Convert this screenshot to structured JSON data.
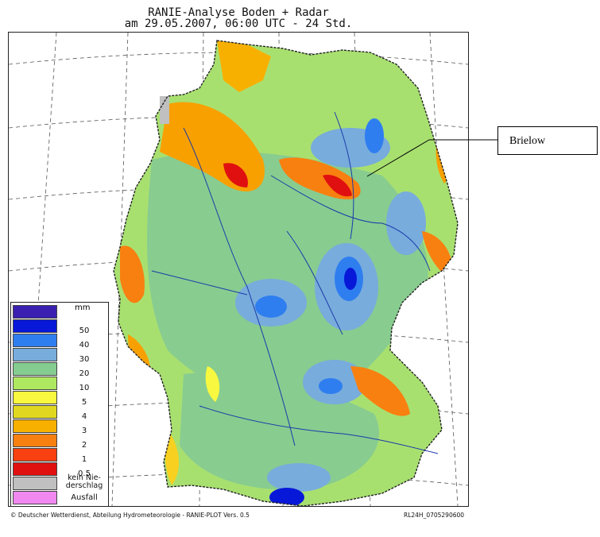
{
  "title": {
    "line1": "RANIE-Analyse Boden + Radar",
    "line2": "am 29.05.2007, 06:00 UTC - 24 Std."
  },
  "legend": {
    "unit": "mm",
    "items": [
      {
        "label": "",
        "color": "#3a1fb0"
      },
      {
        "label": "50",
        "color": "#0818d8"
      },
      {
        "label": "40",
        "color": "#2f7ef0"
      },
      {
        "label": "30",
        "color": "#78acdc"
      },
      {
        "label": "20",
        "color": "#84cc90"
      },
      {
        "label": "10",
        "color": "#aee860"
      },
      {
        "label": "5",
        "color": "#f8f840"
      },
      {
        "label": "4",
        "color": "#e0d820"
      },
      {
        "label": "3",
        "color": "#f8b000"
      },
      {
        "label": "2",
        "color": "#f88010"
      },
      {
        "label": "1",
        "color": "#f84010"
      },
      {
        "label": "0.5",
        "color": "#e01010"
      },
      {
        "label": "kein Nie-\nderschlag",
        "color": "#c0c0c0"
      },
      {
        "label": "Ausfall",
        "color": "#f088f0"
      }
    ]
  },
  "footer": {
    "left": "© Deutscher Wetterdienst, Abteilung Hydrometeorologie - RANIE-PLOT Vers. 0.5",
    "right": "RL24H_0705290600"
  },
  "callout": {
    "label": "Brielow"
  }
}
